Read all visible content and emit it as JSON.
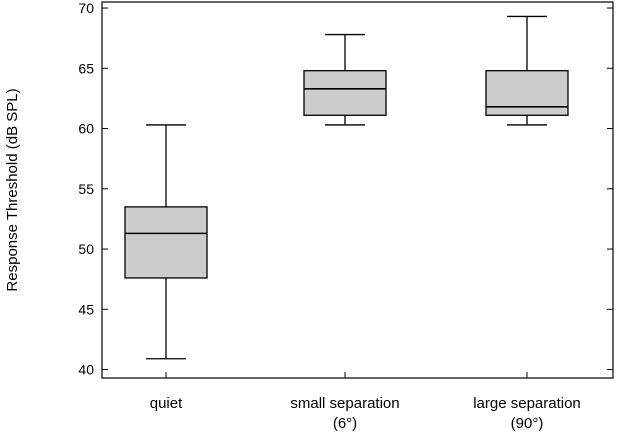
{
  "chart_data": {
    "type": "box",
    "title": "",
    "xlabel": "",
    "ylabel": "Response Threshold (dB SPL)",
    "ylim": [
      39.3,
      70.5
    ],
    "yticks": [
      40,
      45,
      50,
      55,
      60,
      65,
      70
    ],
    "grid": false,
    "categories": [
      {
        "lines": [
          "quiet"
        ]
      },
      {
        "lines": [
          "small separation",
          "(6°)"
        ]
      },
      {
        "lines": [
          "large separation",
          "(90°)"
        ]
      }
    ],
    "boxes": [
      {
        "min": 40.9,
        "q1": 47.6,
        "median": 51.3,
        "q3": 53.5,
        "max": 60.3
      },
      {
        "min": 60.3,
        "q1": 61.1,
        "median": 63.3,
        "q3": 64.8,
        "max": 67.8
      },
      {
        "min": 60.3,
        "q1": 61.1,
        "median": 61.8,
        "q3": 64.8,
        "max": 69.3
      }
    ],
    "colors": {
      "box_fill": "#cccccc",
      "stroke": "#000000",
      "background": "#ffffff"
    }
  }
}
